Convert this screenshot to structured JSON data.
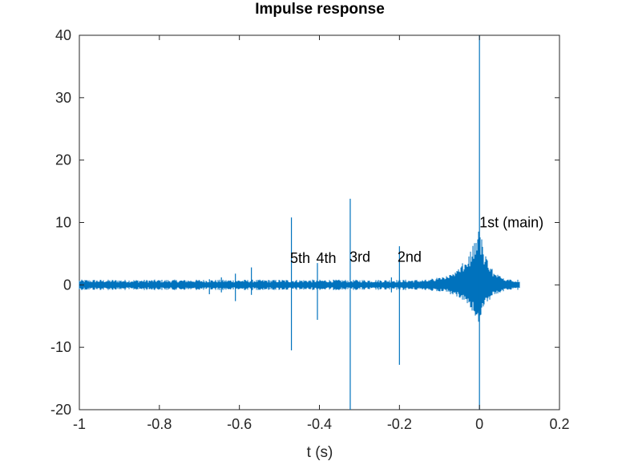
{
  "chart_data": {
    "type": "line",
    "title": "Impulse response",
    "xlabel": "t (s)",
    "ylabel": "",
    "xlim": [
      -1,
      0.2
    ],
    "ylim": [
      -20,
      40
    ],
    "xticks": [
      -1,
      -0.8,
      -0.6,
      -0.4,
      -0.2,
      0,
      0.2
    ],
    "xtick_labels": [
      "-1",
      "-0.8",
      "-0.6",
      "-0.4",
      "-0.2",
      "0",
      "0.2"
    ],
    "yticks": [
      -20,
      -10,
      0,
      10,
      20,
      30,
      40
    ],
    "ytick_labels": [
      "-20",
      "-10",
      "0",
      "10",
      "20",
      "30",
      "40"
    ],
    "grid": false,
    "line_color": "#0072BD",
    "signal": {
      "t_start": -1,
      "t_end": 0.1,
      "baseline_noise": 0.6,
      "spikes": [
        {
          "t": 0.0,
          "max": 40,
          "min": -20
        },
        {
          "t": -0.2,
          "max": 6.2,
          "min": -12.8
        },
        {
          "t": -0.323,
          "max": 13.8,
          "min": -20
        },
        {
          "t": -0.405,
          "max": 3.5,
          "min": -5.6
        },
        {
          "t": -0.47,
          "max": 10.8,
          "min": -10.5
        },
        {
          "t": -0.57,
          "max": 2.8,
          "min": -1.6
        },
        {
          "t": -0.61,
          "max": 1.8,
          "min": -2.6
        },
        {
          "t": -0.645,
          "max": 1.2,
          "min": -1.2
        },
        {
          "t": -0.675,
          "max": 0.9,
          "min": -1.5
        },
        {
          "t": -0.22,
          "max": 1.2,
          "min": -1.2
        }
      ],
      "burst": {
        "t": 0.0,
        "peak_max": 9,
        "peak_min": -6
      }
    },
    "annotations": [
      {
        "text": "1st (main)",
        "x": 0.0,
        "y": 10
      },
      {
        "text": "2nd",
        "x": -0.205,
        "y": 4.5
      },
      {
        "text": "3rd",
        "x": -0.325,
        "y": 4.5
      },
      {
        "text": "4th",
        "x": -0.408,
        "y": 4.3
      },
      {
        "text": "5th",
        "x": -0.473,
        "y": 4.3
      }
    ]
  }
}
